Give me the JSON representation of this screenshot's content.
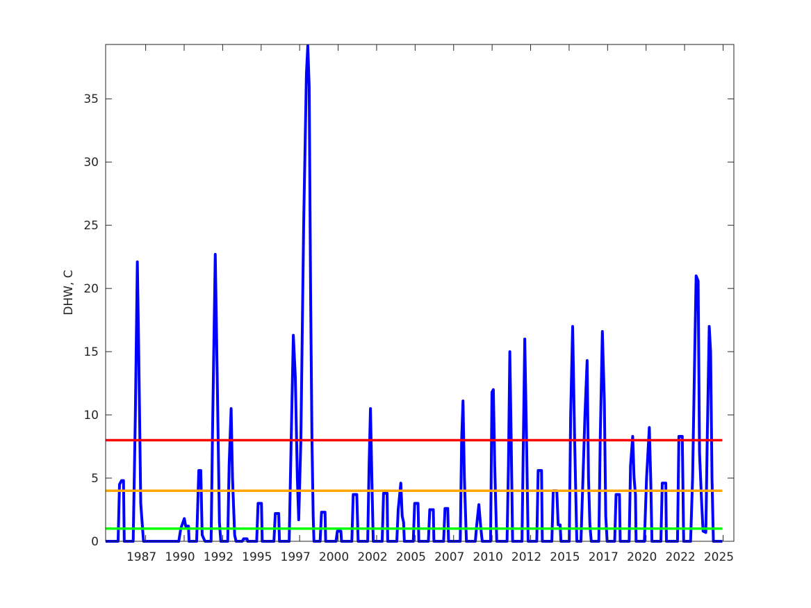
{
  "chart_data": {
    "type": "line",
    "y_label": "DHW, C",
    "xlim": [
      1984.9,
      2025.7
    ],
    "ylim": [
      0,
      39.3
    ],
    "xticks": [
      {
        "value": 1987.5,
        "label": "1987"
      },
      {
        "value": 1990,
        "label": "1990"
      },
      {
        "value": 1992.5,
        "label": "1992"
      },
      {
        "value": 1995,
        "label": "1995"
      },
      {
        "value": 1997.5,
        "label": "1997"
      },
      {
        "value": 2000,
        "label": "2000"
      },
      {
        "value": 2002.5,
        "label": "2002"
      },
      {
        "value": 2005,
        "label": "2005"
      },
      {
        "value": 2007.5,
        "label": "2007"
      },
      {
        "value": 2010,
        "label": "2010"
      },
      {
        "value": 2012.5,
        "label": "2012"
      },
      {
        "value": 2015,
        "label": "2015"
      },
      {
        "value": 2017.5,
        "label": "2017"
      },
      {
        "value": 2020,
        "label": "2020"
      },
      {
        "value": 2022.5,
        "label": "2022"
      },
      {
        "value": 2025,
        "label": "2025"
      }
    ],
    "yticks": [
      0,
      5,
      10,
      15,
      20,
      25,
      30,
      35
    ],
    "grid": false,
    "series": [
      {
        "color": "#0000ff",
        "x": [
          1984.9,
          1985.71,
          1985.8,
          1985.93,
          1986.06,
          1986.11,
          1986.69,
          1986.83,
          1986.96,
          1987.05,
          1987.18,
          1987.27,
          1987.36,
          1989.65,
          1989.78,
          1990.01,
          1990.1,
          1990.28,
          1990.32,
          1990.81,
          1990.95,
          1991.08,
          1991.17,
          1991.35,
          1991.75,
          1991.84,
          1992.02,
          1992.16,
          1992.29,
          1992.38,
          1992.83,
          1992.92,
          1993.05,
          1993.14,
          1993.28,
          1993.37,
          1993.77,
          1993.86,
          1994.08,
          1994.13,
          1994.71,
          1994.8,
          1995.02,
          1995.07,
          1995.83,
          1995.92,
          1996.14,
          1996.19,
          1996.82,
          1996.95,
          1997.09,
          1997.22,
          1997.35,
          1997.44,
          1997.58,
          1997.76,
          1997.94,
          1998.03,
          1998.12,
          1998.21,
          1998.3,
          1998.38,
          1998.43,
          1998.83,
          1998.92,
          1999.15,
          1999.19,
          1999.86,
          1999.95,
          2000.18,
          2000.22,
          2000.89,
          2000.98,
          2001.21,
          2001.3,
          2001.92,
          2002.01,
          2002.1,
          2002.19,
          2002.28,
          2002.86,
          2002.95,
          2003.18,
          2003.22,
          2003.81,
          2003.9,
          2004.07,
          2004.16,
          2004.25,
          2004.3,
          2004.88,
          2004.97,
          2005.19,
          2005.24,
          2005.86,
          2005.95,
          2006.18,
          2006.22,
          2006.85,
          2006.94,
          2007.12,
          2007.17,
          2007.93,
          2008.02,
          2008.11,
          2008.2,
          2008.33,
          2008.91,
          2009.0,
          2009.14,
          2009.27,
          2009.36,
          2009.9,
          2009.99,
          2010.08,
          2010.17,
          2010.3,
          2010.97,
          2011.06,
          2011.15,
          2011.24,
          2011.33,
          2011.94,
          2012.03,
          2012.12,
          2012.25,
          2012.34,
          2012.9,
          2012.99,
          2013.21,
          2013.26,
          2013.88,
          2013.97,
          2014.2,
          2014.29,
          2014.42,
          2014.47,
          2015.01,
          2015.1,
          2015.23,
          2015.36,
          2015.5,
          2015.77,
          2015.9,
          2016.03,
          2016.17,
          2016.26,
          2016.35,
          2016.44,
          2016.93,
          2017.02,
          2017.16,
          2017.29,
          2017.38,
          2017.47,
          2017.96,
          2018.05,
          2018.27,
          2018.32,
          2018.9,
          2018.99,
          2019.13,
          2019.22,
          2019.31,
          2019.35,
          2019.89,
          2020.03,
          2020.21,
          2020.3,
          2020.38,
          2020.96,
          2021.05,
          2021.28,
          2021.32,
          2022.04,
          2022.13,
          2022.35,
          2022.44,
          2022.89,
          2023.02,
          2023.16,
          2023.25,
          2023.38,
          2023.47,
          2023.61,
          2023.7,
          2023.88,
          2023.97,
          2024.1,
          2024.19,
          2024.28,
          2024.37,
          2024.95
        ],
        "values": [
          0,
          0,
          4.5,
          4.8,
          4.8,
          0,
          0,
          10,
          22.1,
          15,
          3,
          1.5,
          0,
          0,
          1,
          1.8,
          1.2,
          1.2,
          0,
          0,
          5.6,
          5.6,
          0.5,
          0,
          0,
          8.5,
          22.7,
          12,
          1.5,
          0,
          0,
          6,
          10.5,
          5,
          0.5,
          0,
          0,
          0.2,
          0.2,
          0,
          0,
          3,
          3,
          0,
          0,
          2.2,
          2.2,
          0,
          0,
          8,
          16.3,
          13,
          5,
          1.7,
          8,
          25,
          37,
          39.2,
          36,
          20,
          8,
          2,
          0,
          0,
          2.3,
          2.3,
          0,
          0,
          0.8,
          0.8,
          0,
          0,
          3.7,
          3.7,
          0,
          0,
          6,
          10.5,
          5,
          0,
          0,
          3.8,
          3.8,
          0,
          0,
          2.5,
          4.6,
          2,
          1.5,
          0,
          0,
          3,
          3,
          0,
          0,
          2.5,
          2.5,
          0,
          0,
          2.6,
          2.6,
          0,
          0,
          8,
          11.1,
          5,
          0,
          0,
          1.3,
          2.9,
          1,
          0,
          0,
          11.8,
          12,
          6,
          0,
          0,
          6,
          15,
          8,
          0,
          0,
          8,
          16,
          7,
          0,
          0,
          5.6,
          5.6,
          0,
          0,
          4,
          4,
          1.3,
          1.3,
          0,
          0,
          10,
          17,
          8,
          0,
          0,
          5,
          10,
          14.3,
          5,
          1.3,
          0,
          0,
          8,
          16.6,
          11,
          2,
          0,
          0,
          3.7,
          3.7,
          0,
          0,
          6,
          8.3,
          5,
          3.7,
          0,
          0,
          5,
          9,
          5,
          0,
          0,
          4.6,
          4.6,
          0,
          0,
          8.3,
          8.3,
          0,
          0,
          5,
          15,
          21,
          20.6,
          7,
          3,
          0.8,
          0.7,
          8,
          17,
          15,
          5,
          0,
          0
        ]
      },
      {
        "color": "#ff0000",
        "x": [
          1984.9,
          2024.95
        ],
        "values": [
          8,
          8
        ]
      },
      {
        "color": "#ffa500",
        "x": [
          1984.9,
          2024.95
        ],
        "values": [
          4,
          4
        ]
      },
      {
        "color": "#00ff00",
        "x": [
          1984.9,
          2024.95
        ],
        "values": [
          1,
          1
        ]
      }
    ]
  }
}
